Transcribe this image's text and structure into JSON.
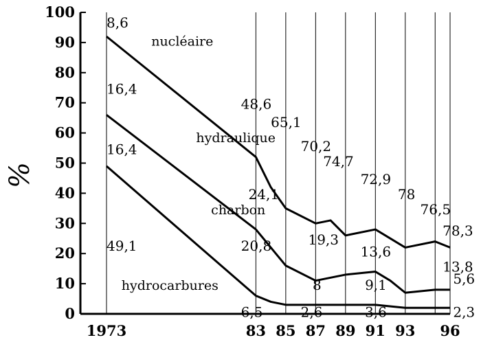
{
  "chart_data": {
    "type": "line",
    "ylabel": "%",
    "ylim": [
      0,
      100
    ],
    "y_ticks": [
      "0",
      "10",
      "20",
      "30",
      "40",
      "50",
      "60",
      "70",
      "80",
      "90",
      "100"
    ],
    "x_ticks": [
      "1973",
      "83",
      "85",
      "87",
      "89",
      "91",
      "93",
      "96"
    ],
    "grid": "vertical",
    "series": [
      {
        "name": "hydrocarbures",
        "x": [
          1973,
          1983,
          1984,
          1985,
          1987,
          1988,
          1989,
          1991,
          1993,
          1995,
          1996
        ],
        "values": [
          49,
          6,
          4,
          3,
          3,
          3,
          3,
          3,
          2,
          2,
          2
        ]
      },
      {
        "name": "charbon",
        "x": [
          1973,
          1983,
          1984,
          1985,
          1987,
          1988,
          1989,
          1991,
          1992,
          1993,
          1995,
          1996
        ],
        "values": [
          66,
          28,
          22,
          16,
          11,
          12,
          13,
          14,
          11,
          7,
          8,
          8
        ]
      },
      {
        "name": "hydraulique",
        "x": [
          1973,
          1983,
          1984,
          1985,
          1987,
          1988,
          1989,
          1991,
          1993,
          1995,
          1996
        ],
        "values": [
          92,
          52,
          42,
          35,
          30,
          31,
          26,
          28,
          22,
          24,
          22
        ]
      }
    ],
    "annotations": [
      {
        "text": "8,6",
        "x": 1973,
        "y": 95
      },
      {
        "text": "nucléaire",
        "x": 1976,
        "y": 89
      },
      {
        "text": "16,4",
        "x": 1973,
        "y": 73
      },
      {
        "text": "16,4",
        "x": 1973,
        "y": 53
      },
      {
        "text": "hydraulique",
        "x": 1979,
        "y": 57
      },
      {
        "text": "48,6",
        "x": 1982,
        "y": 68
      },
      {
        "text": "65,1",
        "x": 1984,
        "y": 62
      },
      {
        "text": "70,2",
        "x": 1986,
        "y": 54
      },
      {
        "text": "74,7",
        "x": 1987.5,
        "y": 49
      },
      {
        "text": "72,9",
        "x": 1990,
        "y": 43
      },
      {
        "text": "78",
        "x": 1992.5,
        "y": 38
      },
      {
        "text": "76,5",
        "x": 1994,
        "y": 33
      },
      {
        "text": "78,3",
        "x": 1995.5,
        "y": 26
      },
      {
        "text": "24,1",
        "x": 1982.5,
        "y": 38
      },
      {
        "text": "charbon",
        "x": 1980,
        "y": 33
      },
      {
        "text": "19,3",
        "x": 1986.5,
        "y": 23
      },
      {
        "text": "13,6",
        "x": 1990,
        "y": 19
      },
      {
        "text": "13,8",
        "x": 1995.5,
        "y": 14
      },
      {
        "text": "49,1",
        "x": 1973,
        "y": 21
      },
      {
        "text": "20,8",
        "x": 1982,
        "y": 21
      },
      {
        "text": "hydrocarbures",
        "x": 1974,
        "y": 8
      },
      {
        "text": "8",
        "x": 1986.8,
        "y": 8
      },
      {
        "text": "9,1",
        "x": 1990.3,
        "y": 8
      },
      {
        "text": "5,6",
        "x": 1996.2,
        "y": 10
      },
      {
        "text": "6,5",
        "x": 1982,
        "y": -1
      },
      {
        "text": "2,6",
        "x": 1986,
        "y": -1
      },
      {
        "text": "3,6",
        "x": 1990.3,
        "y": -1
      },
      {
        "text": "2,3",
        "x": 1996.2,
        "y": -1
      }
    ]
  }
}
